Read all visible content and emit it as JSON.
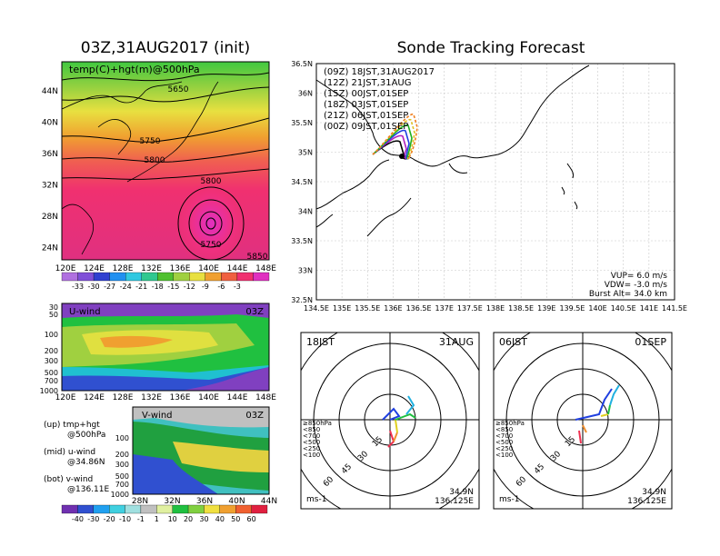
{
  "left_title": "03Z,31AUG2017 (init)",
  "right_title": "Sonde Tracking Forecast",
  "top_map": {
    "label": "temp(C)+hgt(m)@500hPa",
    "lon_ticks": [
      "120E",
      "124E",
      "128E",
      "132E",
      "136E",
      "140E",
      "144E",
      "148E"
    ],
    "lat_ticks": [
      "44N",
      "40N",
      "36N",
      "32N",
      "28N",
      "24N"
    ],
    "contour_labels": [
      "5650",
      "5750",
      "5800",
      "5800",
      "5750",
      "5850"
    ],
    "colorbar": [
      "-33",
      "-30",
      "-27",
      "-24",
      "-21",
      "-18",
      "-15",
      "-12",
      "-9",
      "-6",
      "-3"
    ],
    "colorbar_colors": [
      "#b070e0",
      "#8050d8",
      "#3040d0",
      "#2090f0",
      "#30c8e0",
      "#30c890",
      "#50c030",
      "#a0d040",
      "#e8e040",
      "#f0a030",
      "#f06040",
      "#f03070",
      "#e030c0"
    ]
  },
  "uwind": {
    "label": "U-wind",
    "time": "03Z",
    "p_ticks": [
      "30",
      "50",
      "100",
      "200",
      "300",
      "500",
      "700",
      "1000"
    ],
    "lon_ticks": [
      "120E",
      "124E",
      "128E",
      "132E",
      "136E",
      "140E",
      "144E",
      "148E"
    ]
  },
  "vwind": {
    "label": "V-wind",
    "time": "03Z",
    "lat_ticks": [
      "28N",
      "32N",
      "36N",
      "40N",
      "44N"
    ]
  },
  "legend_text": [
    {
      "a": "(up)  tmp+hgt",
      "b": "@500hPa"
    },
    {
      "a": "(mid)  u-wind",
      "b": "@34.86N"
    },
    {
      "a": "(bot)  v-wind",
      "b": "@136.11E"
    }
  ],
  "wind_colorbar": [
    "-40",
    "-30",
    "-20",
    "-10",
    "-1",
    "1",
    "10",
    "20",
    "30",
    "40",
    "50",
    "60"
  ],
  "wind_colorbar_colors": [
    "#7030b0",
    "#3050d0",
    "#20a0f0",
    "#40d0e0",
    "#a0e0e0",
    "#c0c0c0",
    "#e0f0a0",
    "#20c040",
    "#80d040",
    "#f0e040",
    "#f0a030",
    "#f06030",
    "#e02040"
  ],
  "track_map": {
    "lon_ticks": [
      "134.5E",
      "135E",
      "135.5E",
      "136E",
      "136.5E",
      "137E",
      "137.5E",
      "138E",
      "138.5E",
      "139E",
      "139.5E",
      "140E",
      "140.5E",
      "141E",
      "141.5E"
    ],
    "lat_ticks": [
      "36.5N",
      "36N",
      "35.5N",
      "35N",
      "34.5N",
      "34N",
      "33.5N",
      "33N",
      "32.5N"
    ],
    "legend": [
      {
        "text": "(09Z)  18JST,31AUG2017",
        "color": "#000000"
      },
      {
        "text": "(12Z)  21JST,31AUG",
        "color": "#b020c0"
      },
      {
        "text": "(15Z)  00JST,01SEP",
        "color": "#2040e0"
      },
      {
        "text": "(18Z)  03JST,01SEP",
        "color": "#20b020"
      },
      {
        "text": "(21Z)  06JST,01SEP",
        "color": "#e0c020"
      },
      {
        "text": "(00Z)  09JST,01SEP",
        "color": "#f08020"
      }
    ],
    "params": [
      "VUP=  6.0  m/s",
      "VDW= -3.0  m/s",
      "Burst Alt=  34.0  km"
    ]
  },
  "hodo1": {
    "time": "18JST",
    "date": "31AUG",
    "lat": "34.9N",
    "lon": "136.125E",
    "unit": "ms-1",
    "rings": [
      "15",
      "30",
      "45",
      "60"
    ]
  },
  "hodo2": {
    "time": "06JST",
    "date": "01SEP",
    "lat": "34.9N",
    "lon": "136.125E",
    "unit": "ms-1",
    "rings": [
      "15",
      "30",
      "45",
      "60"
    ]
  },
  "hodo_legend": [
    {
      "text": "≥850hPa",
      "color": "#f03050"
    },
    {
      "text": "<850",
      "color": "#f09030"
    },
    {
      "text": "<700",
      "color": "#e0d020"
    },
    {
      "text": "<500",
      "color": "#20c040"
    },
    {
      "text": "<250",
      "color": "#20b0e0"
    },
    {
      "text": "<100",
      "color": "#2040e0"
    }
  ],
  "colors": {
    "grid": "#c8c8c8",
    "coast": "#000000"
  }
}
